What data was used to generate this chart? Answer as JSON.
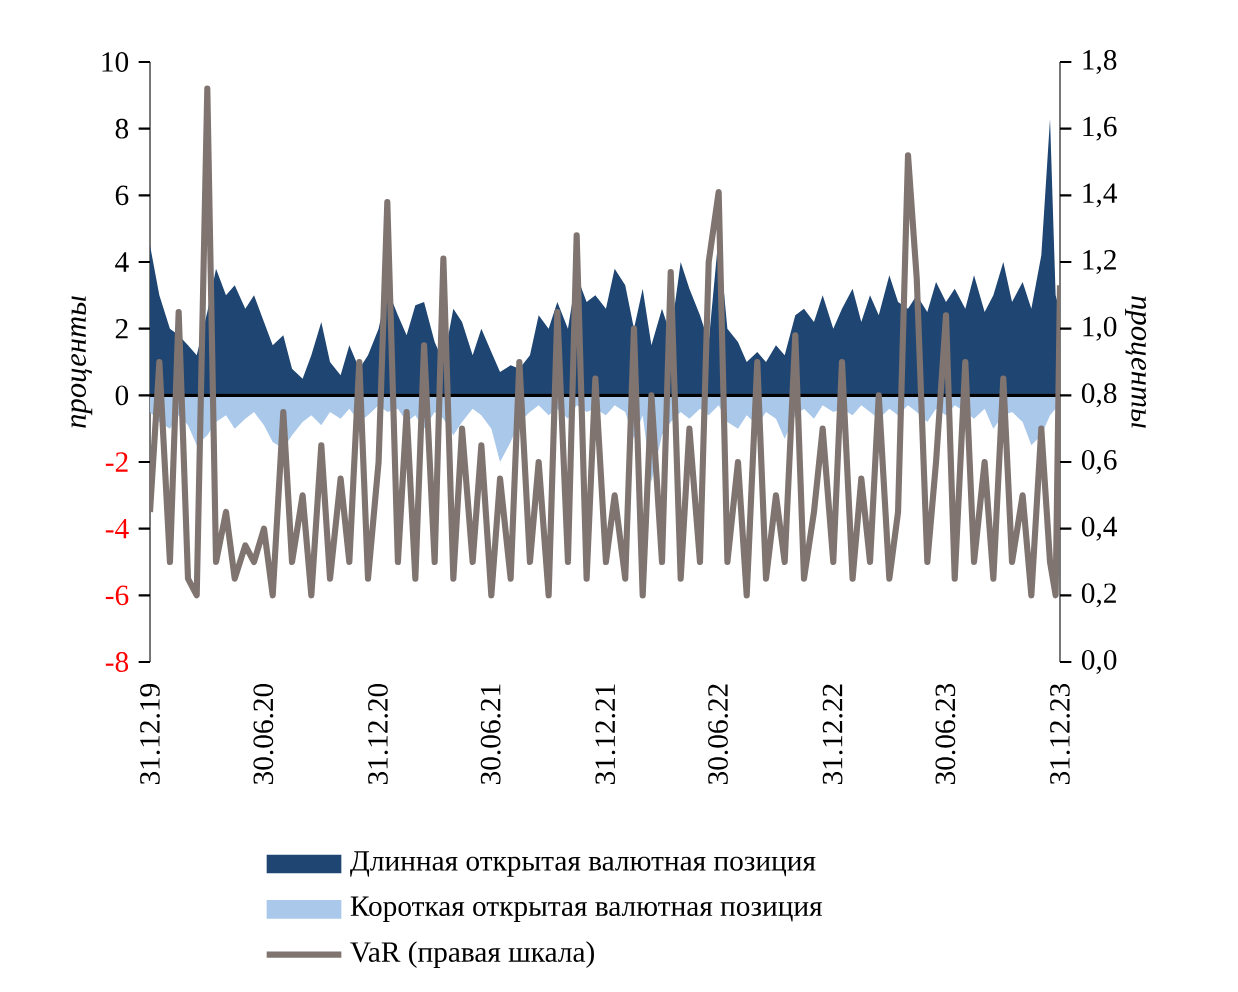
{
  "chart_data": {
    "type": "area",
    "x": [
      "2019-12-31",
      "2020-01-15",
      "2020-02-01",
      "2020-02-15",
      "2020-03-01",
      "2020-03-15",
      "2020-04-01",
      "2020-04-15",
      "2020-05-01",
      "2020-05-15",
      "2020-06-01",
      "2020-06-15",
      "2020-07-01",
      "2020-07-15",
      "2020-08-01",
      "2020-08-15",
      "2020-09-01",
      "2020-09-15",
      "2020-10-01",
      "2020-10-15",
      "2020-11-01",
      "2020-11-15",
      "2020-12-01",
      "2020-12-15",
      "2021-01-01",
      "2021-01-15",
      "2021-02-01",
      "2021-02-15",
      "2021-03-01",
      "2021-03-15",
      "2021-04-01",
      "2021-04-15",
      "2021-05-01",
      "2021-05-15",
      "2021-06-01",
      "2021-06-15",
      "2021-07-01",
      "2021-07-15",
      "2021-08-01",
      "2021-08-15",
      "2021-09-01",
      "2021-09-15",
      "2021-10-01",
      "2021-10-15",
      "2021-11-01",
      "2021-11-15",
      "2021-12-01",
      "2021-12-15",
      "2022-01-01",
      "2022-01-15",
      "2022-02-01",
      "2022-02-15",
      "2022-03-01",
      "2022-03-15",
      "2022-04-01",
      "2022-04-15",
      "2022-05-01",
      "2022-05-15",
      "2022-06-01",
      "2022-06-15",
      "2022-07-01",
      "2022-07-15",
      "2022-08-01",
      "2022-08-15",
      "2022-09-01",
      "2022-09-15",
      "2022-10-01",
      "2022-10-15",
      "2022-11-01",
      "2022-11-15",
      "2022-12-01",
      "2022-12-15",
      "2023-01-01",
      "2023-01-15",
      "2023-02-01",
      "2023-02-15",
      "2023-03-01",
      "2023-03-15",
      "2023-04-01",
      "2023-04-15",
      "2023-05-01",
      "2023-05-15",
      "2023-06-01",
      "2023-06-15",
      "2023-07-01",
      "2023-07-15",
      "2023-08-01",
      "2023-08-15",
      "2023-09-01",
      "2023-09-15",
      "2023-10-01",
      "2023-10-15",
      "2023-11-01",
      "2023-11-15",
      "2023-12-01",
      "2023-12-15",
      "2023-12-24",
      "2023-12-31"
    ],
    "series": [
      {
        "name": "Длинная открытая валютная позиция",
        "color": "#1f4673",
        "values": [
          4.5,
          3.0,
          2.0,
          1.8,
          1.5,
          1.2,
          2.5,
          3.8,
          3.0,
          3.3,
          2.6,
          3.0,
          2.2,
          1.5,
          1.8,
          0.8,
          0.5,
          1.2,
          2.2,
          1.0,
          0.6,
          1.5,
          0.8,
          1.2,
          2.0,
          3.2,
          2.4,
          1.8,
          2.7,
          2.8,
          1.6,
          1.0,
          2.6,
          2.2,
          1.2,
          2.0,
          1.3,
          0.7,
          0.9,
          0.8,
          1.2,
          2.4,
          2.0,
          2.8,
          2.0,
          3.6,
          2.8,
          3.0,
          2.6,
          3.8,
          3.3,
          2.0,
          3.2,
          1.5,
          2.6,
          1.8,
          4.0,
          3.2,
          2.4,
          1.6,
          4.8,
          2.0,
          1.6,
          1.0,
          1.3,
          1.0,
          1.5,
          1.2,
          2.4,
          2.6,
          2.2,
          3.0,
          2.0,
          2.6,
          3.2,
          2.2,
          3.0,
          2.4,
          3.6,
          2.8,
          2.6,
          3.0,
          2.5,
          3.4,
          2.8,
          3.2,
          2.6,
          3.6,
          2.5,
          3.0,
          4.0,
          2.8,
          3.4,
          2.6,
          4.2,
          8.3,
          3.0,
          2.5
        ]
      },
      {
        "name": "Короткая открытая валютная позиция",
        "color": "#a9c8ea",
        "values": [
          -0.5,
          -0.8,
          -1.0,
          -0.6,
          -0.9,
          -1.5,
          -1.2,
          -0.8,
          -0.6,
          -1.0,
          -0.7,
          -0.5,
          -0.9,
          -1.4,
          -1.6,
          -1.2,
          -0.8,
          -0.6,
          -0.9,
          -0.5,
          -0.7,
          -0.4,
          -0.8,
          -0.6,
          -0.3,
          -0.5,
          -0.4,
          -0.8,
          -0.6,
          -1.0,
          -0.5,
          -0.7,
          -1.2,
          -0.8,
          -0.4,
          -0.6,
          -1.0,
          -2.0,
          -1.4,
          -0.8,
          -0.5,
          -0.3,
          -0.6,
          -0.4,
          -0.7,
          -0.3,
          -0.5,
          -0.4,
          -0.6,
          -0.3,
          -0.5,
          -1.3,
          -0.6,
          -2.6,
          -1.2,
          -0.8,
          -0.5,
          -0.7,
          -0.4,
          -0.6,
          -0.3,
          -0.8,
          -1.0,
          -0.6,
          -0.9,
          -0.5,
          -0.7,
          -1.3,
          -0.6,
          -0.4,
          -0.7,
          -0.3,
          -0.5,
          -0.4,
          -0.6,
          -0.3,
          -0.5,
          -0.7,
          -0.4,
          -0.6,
          -0.3,
          -0.5,
          -0.8,
          -0.4,
          -0.6,
          -0.3,
          -0.5,
          -0.7,
          -0.4,
          -1.0,
          -0.6,
          -0.5,
          -0.8,
          -1.5,
          -1.2,
          -0.6,
          -0.4,
          -0.5
        ]
      },
      {
        "name": "VaR (правая шкала)",
        "type": "line",
        "axis": "y2",
        "color": "#7f7470",
        "values": [
          0.45,
          0.9,
          0.3,
          1.05,
          0.25,
          0.2,
          1.72,
          0.3,
          0.45,
          0.25,
          0.35,
          0.3,
          0.4,
          0.2,
          0.75,
          0.3,
          0.5,
          0.2,
          0.65,
          0.25,
          0.55,
          0.3,
          0.9,
          0.25,
          0.6,
          1.38,
          0.3,
          0.75,
          0.25,
          0.95,
          0.3,
          1.21,
          0.25,
          0.7,
          0.3,
          0.65,
          0.2,
          0.55,
          0.25,
          0.9,
          0.3,
          0.6,
          0.2,
          1.05,
          0.3,
          1.28,
          0.25,
          0.85,
          0.3,
          0.5,
          0.25,
          1.0,
          0.2,
          0.8,
          0.3,
          1.17,
          0.25,
          0.7,
          0.3,
          1.2,
          1.41,
          0.3,
          0.6,
          0.2,
          0.9,
          0.25,
          0.5,
          0.3,
          0.98,
          0.25,
          0.45,
          0.7,
          0.3,
          0.9,
          0.25,
          0.55,
          0.3,
          0.8,
          0.25,
          0.45,
          1.52,
          1.15,
          0.3,
          0.6,
          1.04,
          0.25,
          0.9,
          0.3,
          0.6,
          0.25,
          0.85,
          0.3,
          0.5,
          0.2,
          0.7,
          0.3,
          0.2,
          1.13
        ]
      }
    ],
    "ylabel": "проценты",
    "y2label": "проценты",
    "xlim": [
      "2019-12-31",
      "2023-12-31"
    ],
    "xticks": [
      {
        "value": "2019-12-31",
        "label": "31.12.19"
      },
      {
        "value": "2020-06-30",
        "label": "30.06.20"
      },
      {
        "value": "2020-12-31",
        "label": "31.12.20"
      },
      {
        "value": "2021-06-30",
        "label": "30.06.21"
      },
      {
        "value": "2021-12-31",
        "label": "31.12.21"
      },
      {
        "value": "2022-06-30",
        "label": "30.06.22"
      },
      {
        "value": "2022-12-31",
        "label": "31.12.22"
      },
      {
        "value": "2023-06-30",
        "label": "30.06.23"
      },
      {
        "value": "2023-12-31",
        "label": "31.12.23"
      }
    ],
    "ylim": [
      -8,
      10
    ],
    "yticks": [
      -8,
      -6,
      -4,
      -2,
      0,
      2,
      4,
      6,
      8,
      10
    ],
    "y2lim": [
      0,
      1.8
    ],
    "y2ticks": [
      {
        "value": 0,
        "label": "0,0"
      },
      {
        "value": 0.2,
        "label": "0,2"
      },
      {
        "value": 0.4,
        "label": "0,4"
      },
      {
        "value": 0.6,
        "label": "0,6"
      },
      {
        "value": 0.8,
        "label": "0,8"
      },
      {
        "value": 1.0,
        "label": "1,0"
      },
      {
        "value": 1.2,
        "label": "1,2"
      },
      {
        "value": 1.4,
        "label": "1,4"
      },
      {
        "value": 1.6,
        "label": "1,6"
      },
      {
        "value": 1.8,
        "label": "1,8"
      }
    ],
    "ref_lines": [
      {
        "axis": "y",
        "value": 0,
        "color": "#000000"
      }
    ],
    "legend": "bottom"
  }
}
